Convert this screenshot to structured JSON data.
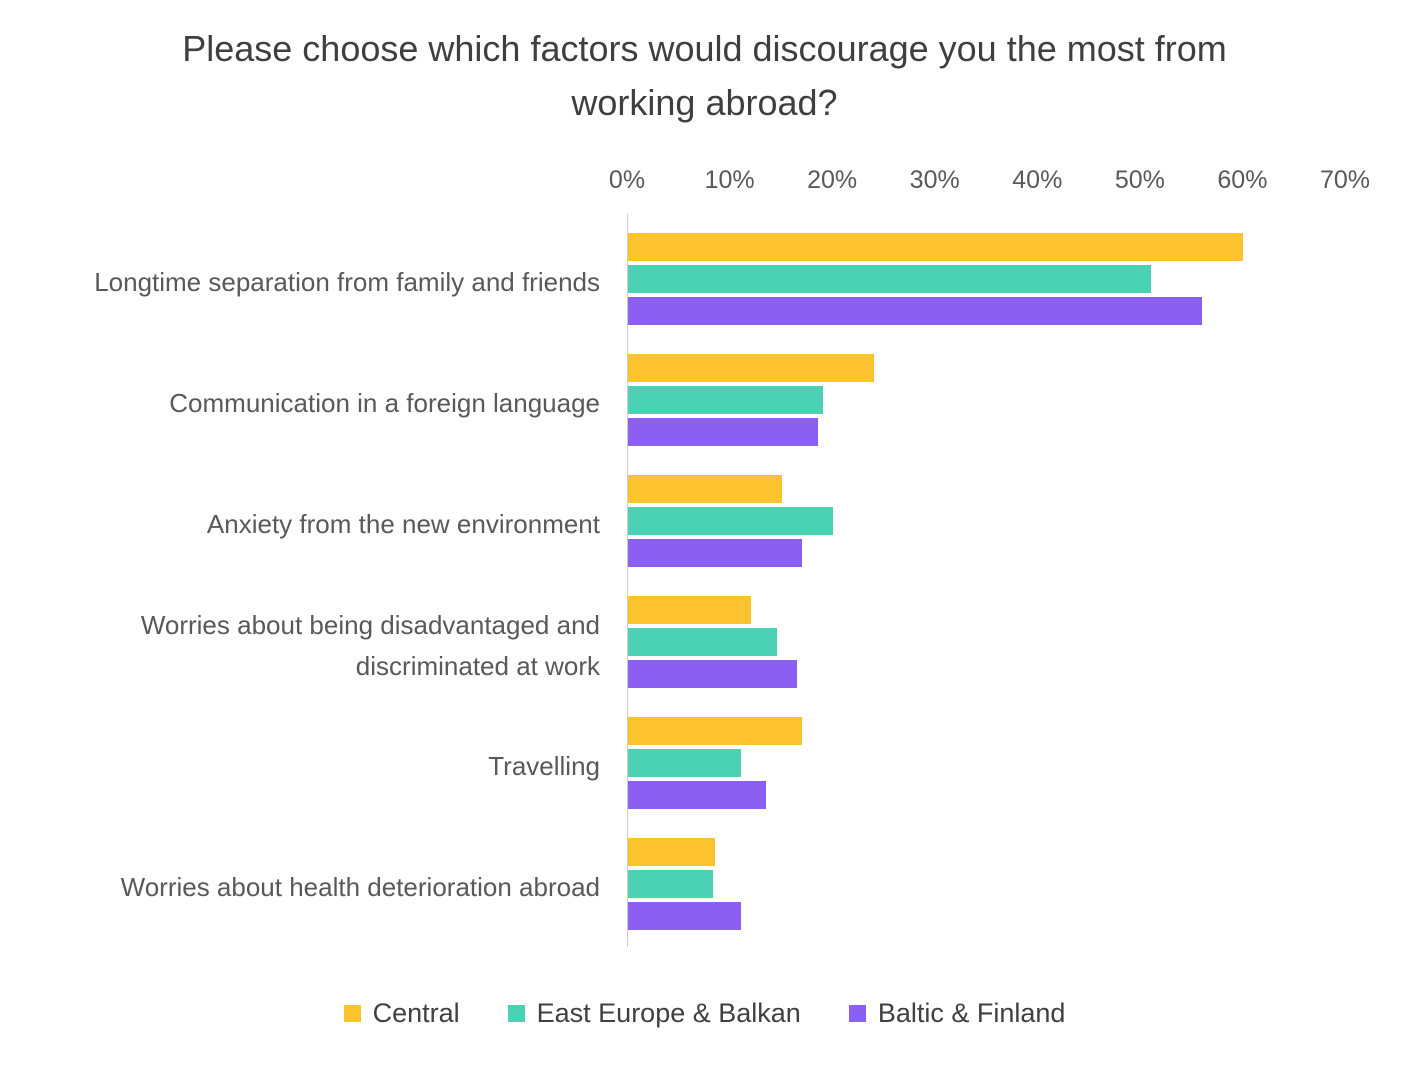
{
  "chart_data": {
    "type": "bar",
    "orientation": "horizontal",
    "title": "Please choose which factors would discourage you the most from working abroad?",
    "categories": [
      "Longtime separation from family and friends",
      "Communication in a foreign language",
      "Anxiety from the new environment",
      "Worries about being disadvantaged and discriminated at work",
      "Travelling",
      "Worries about health deterioration abroad"
    ],
    "series": [
      {
        "name": "Central",
        "color": "#FDC32F",
        "values": [
          60,
          24,
          15,
          12,
          17,
          8.5
        ]
      },
      {
        "name": "East Europe & Balkan",
        "color": "#4BD2B5",
        "values": [
          51,
          19,
          20,
          14.5,
          11,
          8.3
        ]
      },
      {
        "name": "Baltic & Finland",
        "color": "#8A5FF2",
        "values": [
          56,
          18.5,
          17,
          16.5,
          13.5,
          11
        ]
      }
    ],
    "x_ticks": [
      "0%",
      "10%",
      "20%",
      "30%",
      "40%",
      "50%",
      "60%",
      "70%"
    ],
    "xlim": [
      0,
      70
    ],
    "xlabel": "",
    "ylabel": "",
    "grid": false,
    "legend_position": "bottom"
  },
  "colors": {
    "title_text": "#3F3F3F",
    "label_text": "#595959",
    "legend_text": "#404040",
    "axis_line": "#D0CECE",
    "background": "#FFFFFF"
  }
}
